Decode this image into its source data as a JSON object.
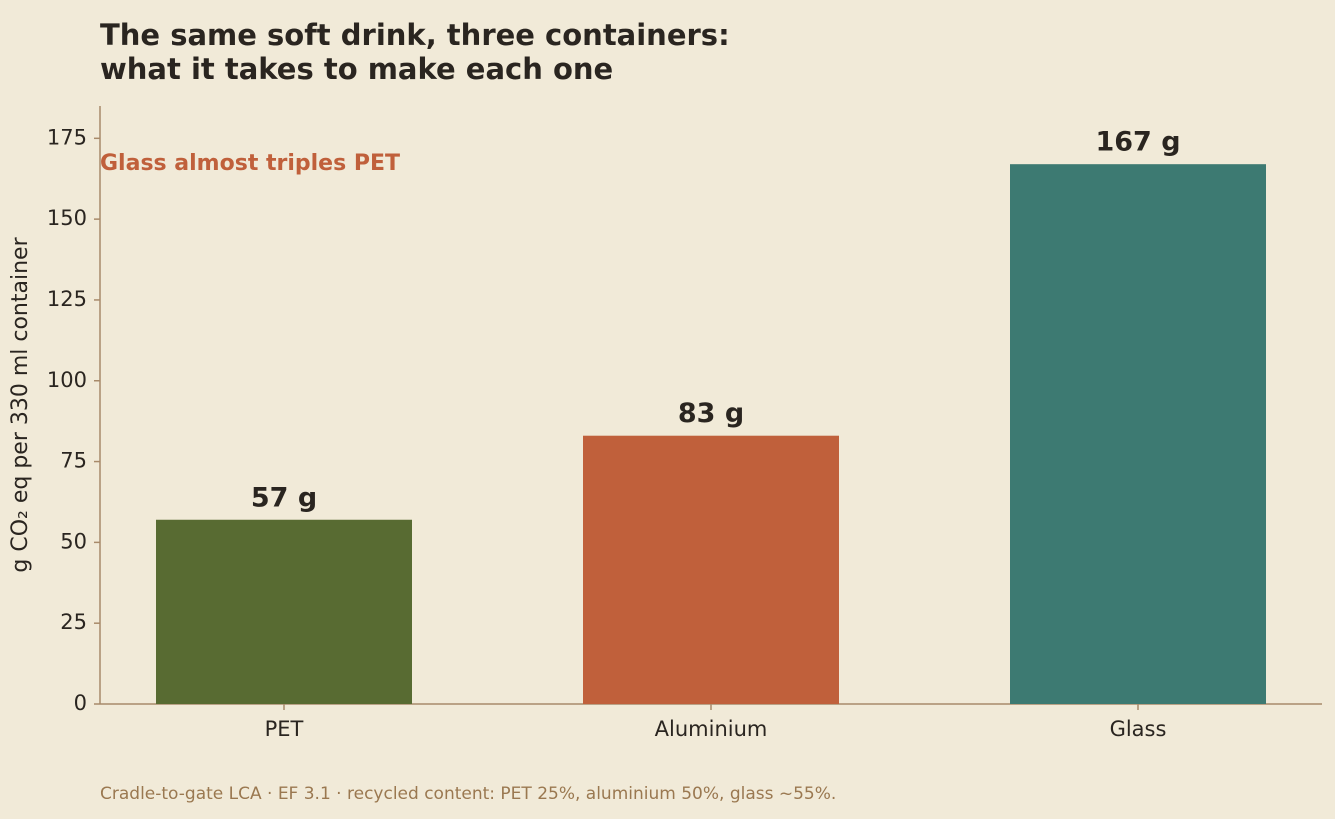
{
  "chart_data": {
    "type": "bar",
    "title": "The same soft drink, three containers:",
    "subtitle": "what it takes to make each one",
    "ylabel": "g CO₂ eq per 330 ml container",
    "annotation": "Glass almost triples PET",
    "note": "Cradle-to-gate LCA · EF 3.1 · recycled content: PET 25%, aluminium 50%, glass ~55%.",
    "categories": [
      "PET",
      "Aluminium",
      "Glass"
    ],
    "values": [
      57,
      83,
      167
    ],
    "value_labels": [
      "57 g",
      "83 g",
      "167 g"
    ],
    "colors": [
      "#586b32",
      "#c0603b",
      "#3d7a72"
    ],
    "ylim": [
      0,
      185
    ],
    "yticks": [
      0,
      25,
      50,
      75,
      100,
      125,
      150,
      175
    ],
    "grid": false
  }
}
